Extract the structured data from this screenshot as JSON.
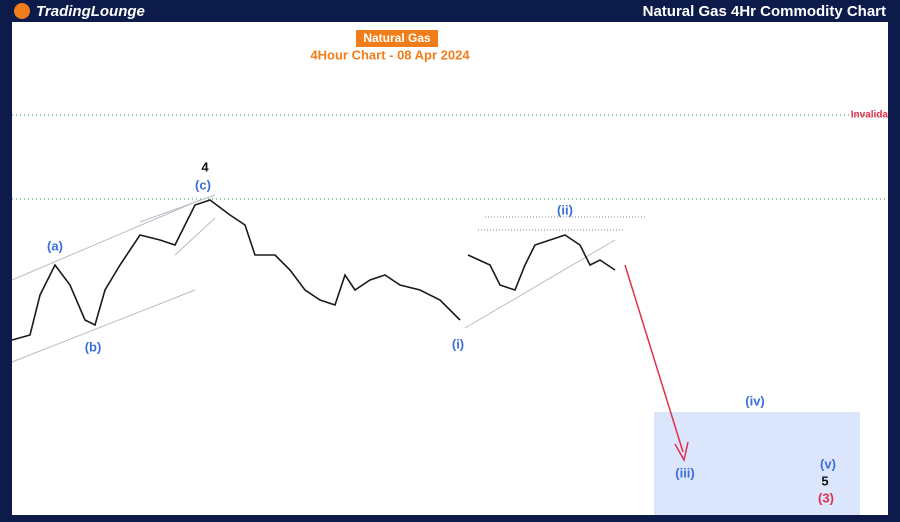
{
  "header": {
    "logo": "TradingLounge",
    "title": "Natural Gas 4Hr Commodity Chart"
  },
  "chart_header": {
    "name": "Natural Gas",
    "subtitle": "4Hour Chart - 08 Apr 2024"
  },
  "level_label": "Invalida",
  "annotations": [
    {
      "label": "4"
    },
    {
      "label": "(c)"
    },
    {
      "label": "(a)"
    },
    {
      "label": "(b)"
    },
    {
      "label": "(i)"
    },
    {
      "label": "(ii)"
    },
    {
      "label": "(iv)"
    },
    {
      "label": "(iii)"
    },
    {
      "label": "(v)"
    },
    {
      "label": "5"
    },
    {
      "label": "(3)"
    }
  ]
}
